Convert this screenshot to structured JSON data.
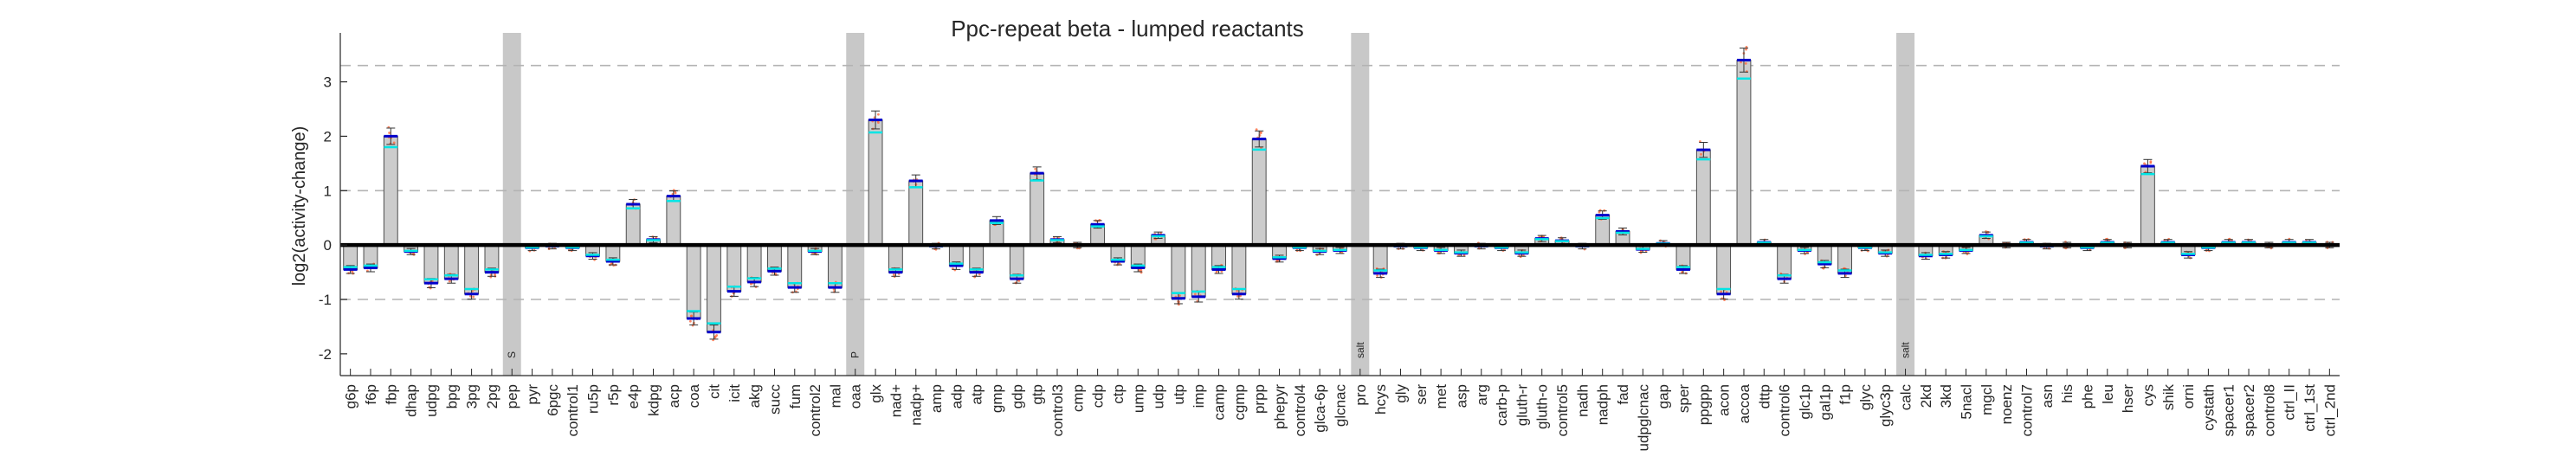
{
  "chart_data": {
    "type": "bar",
    "title": "Ppc-repeat beta - lumped reactants",
    "xlabel": "",
    "ylabel": "log2(activity-change)",
    "ylim": [
      -2.4,
      3.9
    ],
    "yticks": [
      -2,
      -1,
      0,
      1,
      2,
      3
    ],
    "grid": false,
    "reference_lines": [
      -1,
      1,
      3.3
    ],
    "colors": {
      "bar_fill": "#cccccc",
      "bar_edge": "#4d4d4d",
      "zero_line": "#000000",
      "mean_marker": "#0000cc",
      "median_marker": "#00e5e5",
      "replicate_points": "#ff6a3d",
      "divider": "#c8c8c8",
      "reference_line": "#b3b3b3"
    },
    "categories": [
      "g6p",
      "f6p",
      "fbp",
      "dhap",
      "udpg",
      "bpg",
      "3pg",
      "2pg",
      "pep",
      "pyr",
      "6pgc",
      "control1",
      "ru5p",
      "r5p",
      "e4p",
      "kdpg",
      "acp",
      "coa",
      "cit",
      "icit",
      "akg",
      "succ",
      "fum",
      "control2",
      "mal",
      "oaa",
      "glx",
      "nad+",
      "nadp+",
      "amp",
      "adp",
      "atp",
      "gmp",
      "gdp",
      "gtp",
      "control3",
      "cmp",
      "cdp",
      "ctp",
      "ump",
      "udp",
      "utp",
      "imp",
      "camp",
      "cgmp",
      "prpp",
      "phepyr",
      "control4",
      "glca-6p",
      "glcnac",
      "pro",
      "hcys",
      "gly",
      "ser",
      "met",
      "asp",
      "arg",
      "carb-p",
      "gluth-r",
      "gluth-o",
      "control5",
      "nadh",
      "nadph",
      "fad",
      "udpglcnac",
      "gap",
      "sper",
      "ppgpp",
      "acon",
      "accoa",
      "dttp",
      "control6",
      "glc1p",
      "gal1p",
      "f1p",
      "glyc",
      "glyc3p",
      "calc",
      "2kd",
      "3kd",
      "5nacl",
      "mgcl",
      "noenz",
      "control7",
      "asn",
      "his",
      "phe",
      "leu",
      "hser",
      "cys",
      "shik",
      "orni",
      "cystath",
      "spacer1",
      "spacer2",
      "control8",
      "ctrl_II",
      "ctrl_1st",
      "ctrl_2nd"
    ],
    "values": [
      -0.45,
      -0.42,
      2.0,
      -0.12,
      -0.7,
      -0.62,
      -0.9,
      -0.5,
      null,
      -0.05,
      -0.02,
      -0.05,
      -0.2,
      -0.3,
      0.75,
      0.1,
      0.9,
      -1.35,
      -1.6,
      -0.85,
      -0.68,
      -0.48,
      -0.78,
      -0.12,
      -0.78,
      null,
      2.3,
      -0.5,
      1.18,
      -0.02,
      -0.38,
      -0.5,
      0.45,
      -0.62,
      1.32,
      0.1,
      0.0,
      0.38,
      -0.3,
      -0.42,
      0.18,
      -0.98,
      -0.95,
      -0.45,
      -0.9,
      1.95,
      -0.25,
      -0.05,
      -0.12,
      -0.1,
      null,
      -0.52,
      -0.02,
      -0.05,
      -0.1,
      -0.15,
      -0.02,
      -0.05,
      -0.15,
      0.12,
      0.08,
      -0.02,
      0.55,
      0.25,
      -0.08,
      0.03,
      -0.45,
      1.75,
      -0.9,
      3.4,
      0.05,
      -0.62,
      -0.1,
      -0.35,
      -0.52,
      -0.05,
      -0.15,
      null,
      -0.2,
      -0.18,
      -0.1,
      0.18,
      0.0,
      0.05,
      -0.02,
      0.0,
      -0.05,
      0.05,
      0.0,
      1.45,
      0.05,
      -0.18,
      -0.05,
      0.05,
      0.05,
      0.0,
      0.05,
      0.05,
      0.0
    ],
    "dividers": [
      {
        "category": "pep",
        "label": "S"
      },
      {
        "category": "oaa",
        "label": "P"
      },
      {
        "category": "pro",
        "label": "salt"
      },
      {
        "category": "calc",
        "label": "salt"
      }
    ]
  }
}
